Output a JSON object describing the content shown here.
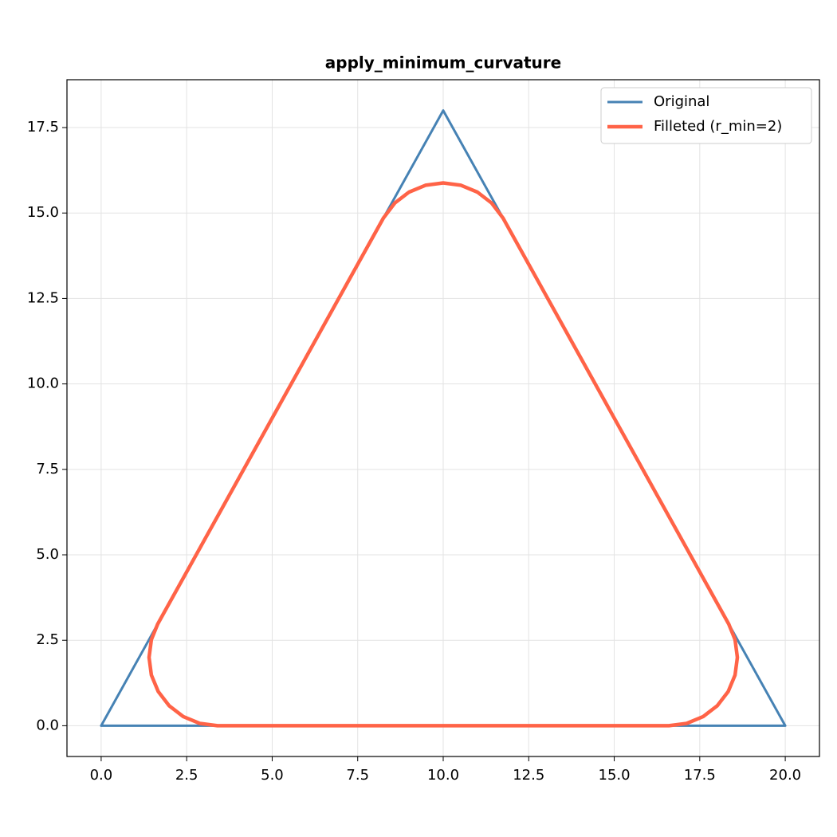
{
  "chart_data": {
    "type": "line",
    "title": "apply_minimum_curvature",
    "xlim": [
      -1,
      21
    ],
    "ylim": [
      -0.9,
      18.9
    ],
    "xticks": [
      {
        "value": 0,
        "label": "0.0"
      },
      2.5,
      {
        "value": 5,
        "label": "5.0"
      },
      7.5,
      {
        "value": 10,
        "label": "10.0"
      },
      12.5,
      {
        "value": 15,
        "label": "15.0"
      },
      17.5,
      {
        "value": 20,
        "label": "20.0"
      }
    ],
    "yticks": [
      {
        "value": 0,
        "label": "0.0"
      },
      2.5,
      {
        "value": 5,
        "label": "5.0"
      },
      7.5,
      {
        "value": 10,
        "label": "10.0"
      },
      12.5,
      {
        "value": 15,
        "label": "15.0"
      },
      17.5
    ],
    "grid": true,
    "legend": "upper right",
    "series": [
      {
        "name": "Original",
        "color": "#4682b4",
        "x": [
          0,
          20,
          10,
          0
        ],
        "values": [
          0,
          0,
          18,
          0
        ]
      },
      {
        "name": "Filleted (r_min=2)",
        "color": "#ff6347",
        "x": [
          3.4,
          16.6,
          17.118,
          17.6,
          18.014,
          18.332,
          18.532,
          18.6,
          18.532,
          18.349,
          11.748,
          11.414,
          11.0,
          10.518,
          10.0,
          9.482,
          9.0,
          8.586,
          8.252,
          1.651,
          1.468,
          1.4,
          1.468,
          1.668,
          1.986,
          2.4,
          2.882,
          3.4
        ],
        "values": [
          0,
          0,
          0.068,
          0.268,
          0.586,
          1.0,
          1.482,
          2.0,
          2.518,
          2.972,
          14.853,
          15.294,
          15.612,
          15.812,
          15.88,
          15.812,
          15.612,
          15.294,
          14.853,
          2.972,
          2.518,
          2.0,
          1.482,
          1.0,
          0.586,
          0.268,
          0.068,
          0
        ]
      }
    ]
  }
}
